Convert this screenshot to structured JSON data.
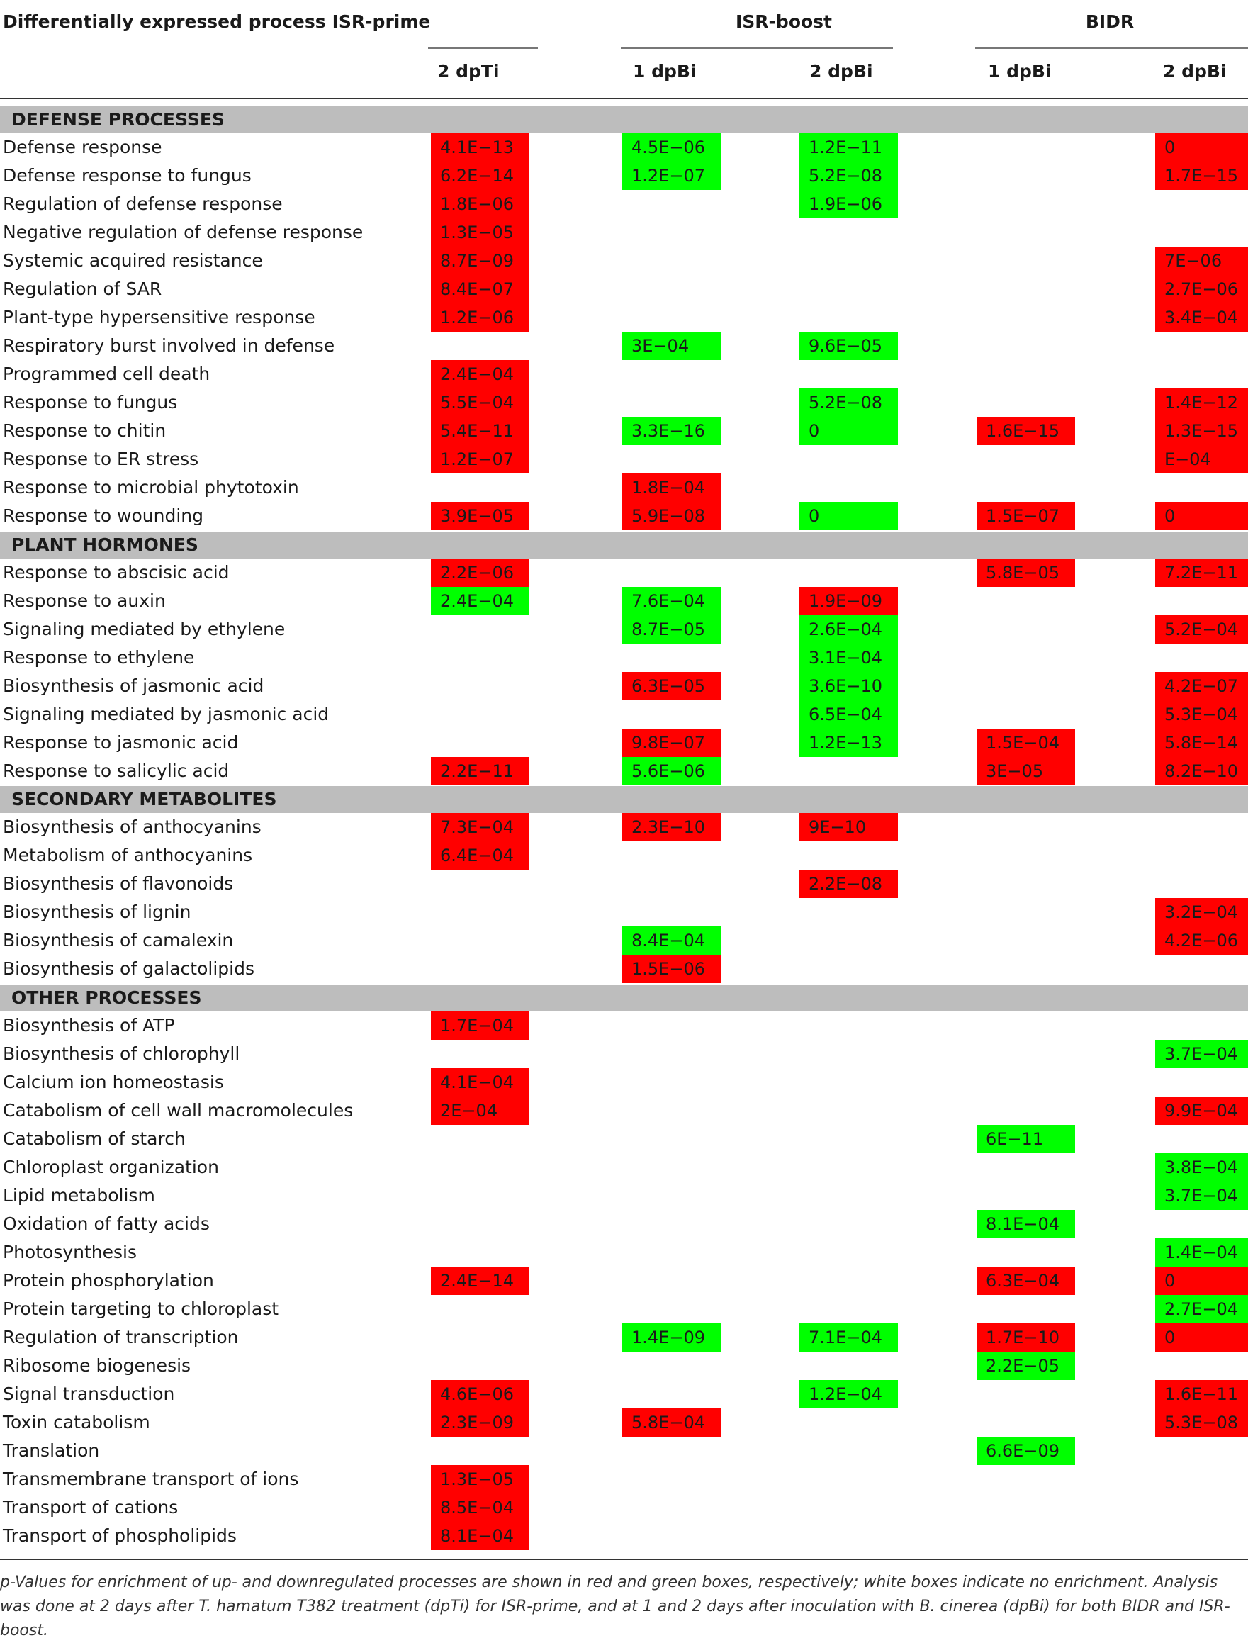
{
  "header": {
    "process_col": "Differentially expressed process",
    "groups": [
      {
        "name": "ISR-prime",
        "subcols": [
          "2 dpTi"
        ]
      },
      {
        "name": "ISR-boost",
        "subcols": [
          "1 dpBi",
          "2 dpBi"
        ]
      },
      {
        "name": "BIDR",
        "subcols": [
          "1 dpBi",
          "2 dpBi"
        ]
      }
    ]
  },
  "colors": {
    "up": "#ff0000",
    "down": "#00ff00",
    "section": "#bdbdbd"
  },
  "sections": [
    {
      "title": "DEFENSE PROCESSES",
      "rows": [
        {
          "label": "Defense response",
          "cells": [
            {
              "v": "4.1E−13",
              "d": "up"
            },
            {
              "v": "4.5E−06",
              "d": "down"
            },
            {
              "v": "1.2E−11",
              "d": "down"
            },
            null,
            {
              "v": "0",
              "d": "up"
            }
          ]
        },
        {
          "label": "Defense response to fungus",
          "cells": [
            {
              "v": "6.2E−14",
              "d": "up"
            },
            {
              "v": "1.2E−07",
              "d": "down"
            },
            {
              "v": "5.2E−08",
              "d": "down"
            },
            null,
            {
              "v": "1.7E−15",
              "d": "up"
            }
          ]
        },
        {
          "label": "Regulation of defense response",
          "cells": [
            {
              "v": "1.8E−06",
              "d": "up"
            },
            null,
            {
              "v": "1.9E−06",
              "d": "down"
            },
            null,
            null
          ]
        },
        {
          "label": "Negative regulation of defense response",
          "cells": [
            {
              "v": "1.3E−05",
              "d": "up"
            },
            null,
            null,
            null,
            null
          ]
        },
        {
          "label": "Systemic acquired resistance",
          "cells": [
            {
              "v": "8.7E−09",
              "d": "up"
            },
            null,
            null,
            null,
            {
              "v": "7E−06",
              "d": "up"
            }
          ]
        },
        {
          "label": "Regulation of SAR",
          "cells": [
            {
              "v": "8.4E−07",
              "d": "up"
            },
            null,
            null,
            null,
            {
              "v": "2.7E−06",
              "d": "up"
            }
          ]
        },
        {
          "label": "Plant-type hypersensitive response",
          "cells": [
            {
              "v": "1.2E−06",
              "d": "up"
            },
            null,
            null,
            null,
            {
              "v": "3.4E−04",
              "d": "up"
            }
          ]
        },
        {
          "label": "Respiratory burst involved in defense",
          "cells": [
            null,
            {
              "v": "3E−04",
              "d": "down"
            },
            {
              "v": "9.6E−05",
              "d": "down"
            },
            null,
            null
          ]
        },
        {
          "label": "Programmed cell death",
          "cells": [
            {
              "v": "2.4E−04",
              "d": "up"
            },
            null,
            null,
            null,
            null
          ]
        },
        {
          "label": "Response to fungus",
          "cells": [
            {
              "v": "5.5E−04",
              "d": "up"
            },
            null,
            {
              "v": "5.2E−08",
              "d": "down"
            },
            null,
            {
              "v": "1.4E−12",
              "d": "up"
            }
          ]
        },
        {
          "label": "Response to chitin",
          "cells": [
            {
              "v": "5.4E−11",
              "d": "up"
            },
            {
              "v": "3.3E−16",
              "d": "down"
            },
            {
              "v": "0",
              "d": "down"
            },
            {
              "v": "1.6E−15",
              "d": "up"
            },
            {
              "v": "1.3E−15",
              "d": "up"
            }
          ]
        },
        {
          "label": "Response to ER stress",
          "cells": [
            {
              "v": "1.2E−07",
              "d": "up"
            },
            null,
            null,
            null,
            {
              "v": "E−04",
              "d": "up"
            }
          ]
        },
        {
          "label": "Response to microbial phytotoxin",
          "cells": [
            null,
            {
              "v": "1.8E−04",
              "d": "up"
            },
            null,
            null,
            null
          ]
        },
        {
          "label": "Response to wounding",
          "cells": [
            {
              "v": "3.9E−05",
              "d": "up"
            },
            {
              "v": "5.9E−08",
              "d": "up"
            },
            {
              "v": "0",
              "d": "down"
            },
            {
              "v": "1.5E−07",
              "d": "up"
            },
            {
              "v": "0",
              "d": "up"
            }
          ]
        }
      ]
    },
    {
      "title": "PLANT HORMONES",
      "rows": [
        {
          "label": "Response to abscisic acid",
          "cells": [
            {
              "v": "2.2E−06",
              "d": "up"
            },
            null,
            null,
            {
              "v": "5.8E−05",
              "d": "up"
            },
            {
              "v": "7.2E−11",
              "d": "up"
            }
          ]
        },
        {
          "label": "Response to auxin",
          "cells": [
            {
              "v": "2.4E−04",
              "d": "down"
            },
            {
              "v": "7.6E−04",
              "d": "down"
            },
            {
              "v": "1.9E−09",
              "d": "up"
            },
            null,
            null
          ]
        },
        {
          "label": "Signaling mediated by ethylene",
          "cells": [
            null,
            {
              "v": "8.7E−05",
              "d": "down"
            },
            {
              "v": "2.6E−04",
              "d": "down"
            },
            null,
            {
              "v": "5.2E−04",
              "d": "up"
            }
          ]
        },
        {
          "label": "Response to ethylene",
          "cells": [
            null,
            null,
            {
              "v": "3.1E−04",
              "d": "down"
            },
            null,
            null
          ]
        },
        {
          "label": "Biosynthesis of jasmonic acid",
          "cells": [
            null,
            {
              "v": "6.3E−05",
              "d": "up"
            },
            {
              "v": "3.6E−10",
              "d": "down"
            },
            null,
            {
              "v": "4.2E−07",
              "d": "up"
            }
          ]
        },
        {
          "label": "Signaling mediated by jasmonic acid",
          "cells": [
            null,
            null,
            {
              "v": "6.5E−04",
              "d": "down"
            },
            null,
            {
              "v": "5.3E−04",
              "d": "up"
            }
          ]
        },
        {
          "label": "Response to jasmonic acid",
          "cells": [
            null,
            {
              "v": "9.8E−07",
              "d": "up"
            },
            {
              "v": "1.2E−13",
              "d": "down"
            },
            {
              "v": "1.5E−04",
              "d": "up"
            },
            {
              "v": "5.8E−14",
              "d": "up"
            }
          ]
        },
        {
          "label": "Response to salicylic acid",
          "cells": [
            {
              "v": "2.2E−11",
              "d": "up"
            },
            {
              "v": "5.6E−06",
              "d": "down"
            },
            null,
            {
              "v": "3E−05",
              "d": "up"
            },
            {
              "v": "8.2E−10",
              "d": "up"
            }
          ]
        }
      ]
    },
    {
      "title": "SECONDARY METABOLITES",
      "rows": [
        {
          "label": "Biosynthesis of anthocyanins",
          "cells": [
            {
              "v": "7.3E−04",
              "d": "up"
            },
            {
              "v": "2.3E−10",
              "d": "up"
            },
            {
              "v": "9E−10",
              "d": "up"
            },
            null,
            null
          ]
        },
        {
          "label": "Metabolism of anthocyanins",
          "cells": [
            {
              "v": "6.4E−04",
              "d": "up"
            },
            null,
            null,
            null,
            null
          ]
        },
        {
          "label": "Biosynthesis of flavonoids",
          "cells": [
            null,
            null,
            {
              "v": "2.2E−08",
              "d": "up"
            },
            null,
            null
          ]
        },
        {
          "label": "Biosynthesis of lignin",
          "cells": [
            null,
            null,
            null,
            null,
            {
              "v": "3.2E−04",
              "d": "up"
            }
          ]
        },
        {
          "label": "Biosynthesis of camalexin",
          "cells": [
            null,
            {
              "v": "8.4E−04",
              "d": "down"
            },
            null,
            null,
            {
              "v": "4.2E−06",
              "d": "up"
            }
          ]
        },
        {
          "label": "Biosynthesis of galactolipids",
          "cells": [
            null,
            {
              "v": "1.5E−06",
              "d": "up"
            },
            null,
            null,
            null
          ]
        }
      ]
    },
    {
      "title": "OTHER PROCESSES",
      "rows": [
        {
          "label": "Biosynthesis of ATP",
          "cells": [
            {
              "v": "1.7E−04",
              "d": "up"
            },
            null,
            null,
            null,
            null
          ]
        },
        {
          "label": "Biosynthesis of chlorophyll",
          "cells": [
            null,
            null,
            null,
            null,
            {
              "v": "3.7E−04",
              "d": "down"
            }
          ]
        },
        {
          "label": "Calcium ion homeostasis",
          "cells": [
            {
              "v": "4.1E−04",
              "d": "up"
            },
            null,
            null,
            null,
            null
          ]
        },
        {
          "label": "Catabolism of cell wall macromolecules",
          "cells": [
            {
              "v": "2E−04",
              "d": "up"
            },
            null,
            null,
            null,
            {
              "v": "9.9E−04",
              "d": "up"
            }
          ]
        },
        {
          "label": "Catabolism of starch",
          "cells": [
            null,
            null,
            null,
            {
              "v": "6E−11",
              "d": "down"
            },
            null
          ]
        },
        {
          "label": "Chloroplast organization",
          "cells": [
            null,
            null,
            null,
            null,
            {
              "v": "3.8E−04",
              "d": "down"
            }
          ]
        },
        {
          "label": "Lipid metabolism",
          "cells": [
            null,
            null,
            null,
            null,
            {
              "v": "3.7E−04",
              "d": "down"
            }
          ]
        },
        {
          "label": "Oxidation of fatty acids",
          "cells": [
            null,
            null,
            null,
            {
              "v": "8.1E−04",
              "d": "down"
            },
            null
          ]
        },
        {
          "label": "Photosynthesis",
          "cells": [
            null,
            null,
            null,
            null,
            {
              "v": "1.4E−04",
              "d": "down"
            }
          ]
        },
        {
          "label": "Protein phosphorylation",
          "cells": [
            {
              "v": "2.4E−14",
              "d": "up"
            },
            null,
            null,
            {
              "v": "6.3E−04",
              "d": "up"
            },
            {
              "v": "0",
              "d": "up"
            }
          ]
        },
        {
          "label": "Protein targeting to chloroplast",
          "cells": [
            null,
            null,
            null,
            null,
            {
              "v": "2.7E−04",
              "d": "down"
            }
          ]
        },
        {
          "label": "Regulation of transcription",
          "cells": [
            null,
            {
              "v": "1.4E−09",
              "d": "down"
            },
            {
              "v": "7.1E−04",
              "d": "down"
            },
            {
              "v": "1.7E−10",
              "d": "up"
            },
            {
              "v": "0",
              "d": "up"
            }
          ]
        },
        {
          "label": "Ribosome biogenesis",
          "cells": [
            null,
            null,
            null,
            {
              "v": "2.2E−05",
              "d": "down"
            },
            null
          ]
        },
        {
          "label": "Signal transduction",
          "cells": [
            {
              "v": "4.6E−06",
              "d": "up"
            },
            null,
            {
              "v": "1.2E−04",
              "d": "down"
            },
            null,
            {
              "v": "1.6E−11",
              "d": "up"
            }
          ]
        },
        {
          "label": "Toxin catabolism",
          "cells": [
            {
              "v": "2.3E−09",
              "d": "up"
            },
            {
              "v": "5.8E−04",
              "d": "up"
            },
            null,
            null,
            {
              "v": "5.3E−08",
              "d": "up"
            }
          ]
        },
        {
          "label": "Translation",
          "cells": [
            null,
            null,
            null,
            {
              "v": "6.6E−09",
              "d": "down"
            },
            null
          ]
        },
        {
          "label": "Transmembrane transport of ions",
          "cells": [
            {
              "v": "1.3E−05",
              "d": "up"
            },
            null,
            null,
            null,
            null
          ]
        },
        {
          "label": "Transport of cations",
          "cells": [
            {
              "v": "8.5E−04",
              "d": "up"
            },
            null,
            null,
            null,
            null
          ]
        },
        {
          "label": "Transport of phospholipids",
          "cells": [
            {
              "v": "8.1E−04",
              "d": "up"
            },
            null,
            null,
            null,
            null
          ]
        }
      ]
    }
  ],
  "footnote": "p-Values for enrichment of up- and downregulated processes are shown in red and green boxes, respectively; white boxes indicate no enrichment. Analysis was done at 2 days after T. hamatum T382 treatment (dpTi) for ISR-prime, and at 1 and 2 days after inoculation with B. cinerea (dpBi) for both BIDR and ISR-boost."
}
